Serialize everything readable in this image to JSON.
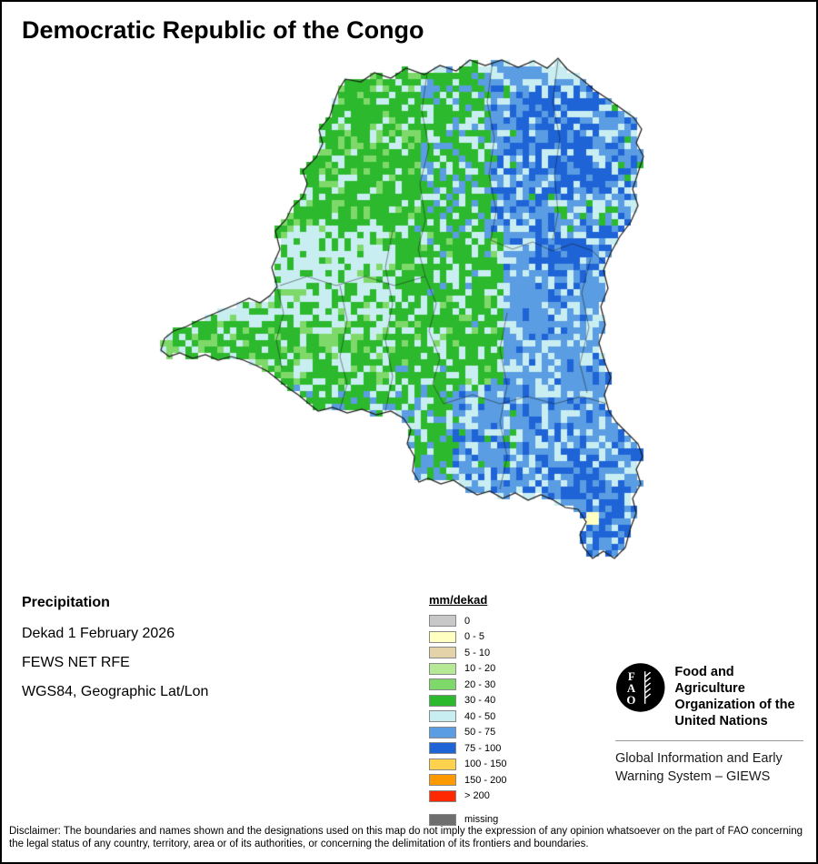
{
  "title": "Democratic Republic of the Congo",
  "info": {
    "heading": "Precipitation",
    "lines": [
      "Dekad 1 February 2026",
      "FEWS NET RFE",
      "WGS84, Geographic Lat/Lon"
    ]
  },
  "legend": {
    "title": "mm/dekad",
    "items": [
      {
        "label": "0",
        "color": "#c8c8c8"
      },
      {
        "label": "0 - 5",
        "color": "#ffffc2"
      },
      {
        "label": "5 - 10",
        "color": "#e4d2a8"
      },
      {
        "label": "10 - 20",
        "color": "#b5e996"
      },
      {
        "label": "20 - 30",
        "color": "#7fd96a"
      },
      {
        "label": "30 - 40",
        "color": "#2db92d"
      },
      {
        "label": "40 - 50",
        "color": "#c9eef2"
      },
      {
        "label": "50 - 75",
        "color": "#5a9de2"
      },
      {
        "label": "75 - 100",
        "color": "#1f64d7"
      },
      {
        "label": "100 - 150",
        "color": "#ffd24d"
      },
      {
        "label": "150 - 200",
        "color": "#ff9900"
      },
      {
        "label": "> 200",
        "color": "#ff2800"
      }
    ],
    "missing": {
      "label": "missing",
      "color": "#6e6e6e"
    }
  },
  "fao": {
    "org_lines": [
      "Food and Agriculture",
      "Organization of the",
      "United Nations"
    ],
    "giews_lines": [
      "Global Information and Early",
      "Warning System – GIEWS"
    ]
  },
  "disclaimer": "Disclaimer: The boundaries and names shown and the designations used on this map do not imply the expression of any opinion whatsoever on the part of FAO concerning the legal status of any country, territory, area or of its authorities, or concerning the delimitation of its frontiers and boundaries.",
  "map": {
    "cell_size": 7,
    "palette": {
      "green": "#2db92d",
      "light_green": "#7fd96a",
      "pale_cyan": "#c9eef2",
      "blue": "#5a9de2",
      "dark_blue": "#1f64d7",
      "pale_yellow": "#ffffc2",
      "tan": "#e4d2a8"
    }
  }
}
